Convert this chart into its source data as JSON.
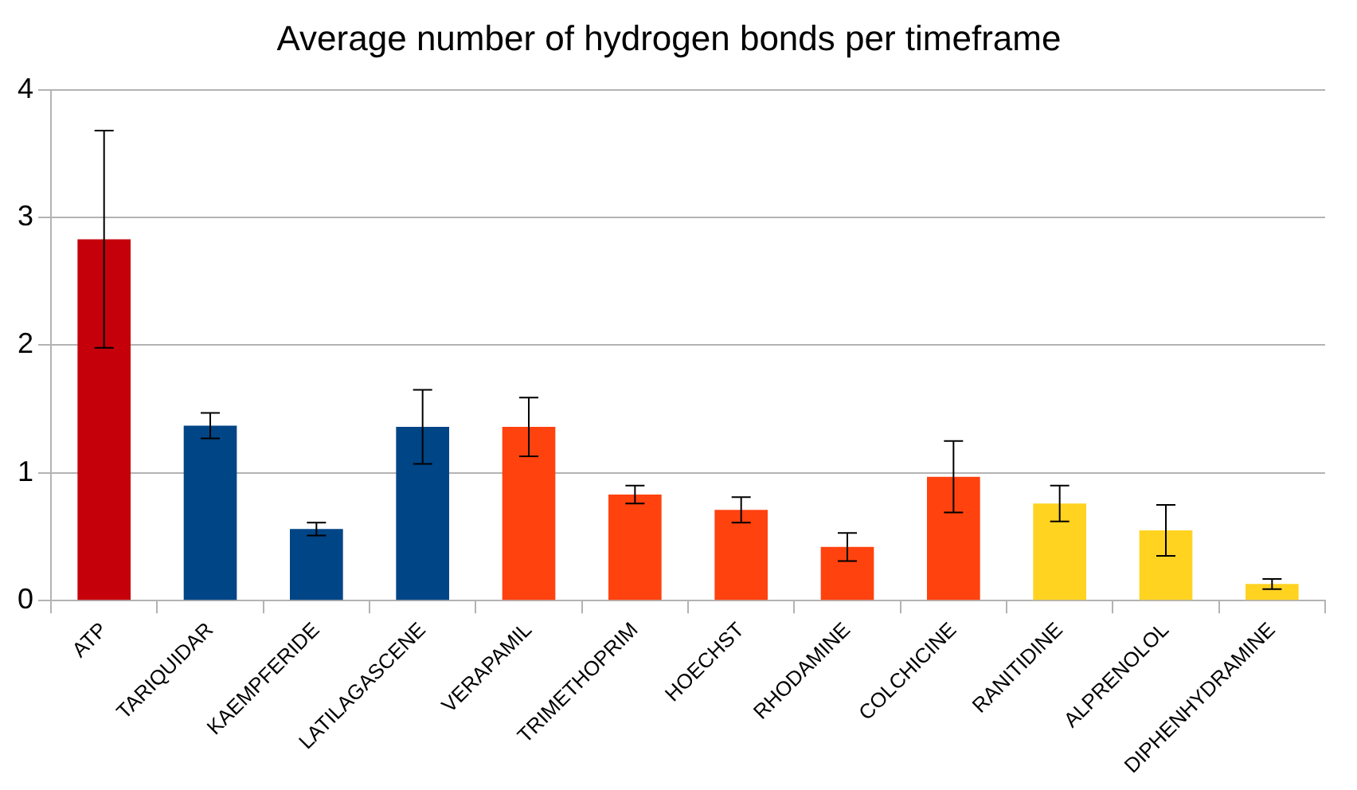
{
  "chart_data": {
    "type": "bar",
    "title": "Average number of hydrogen bonds per timeframe",
    "categories": [
      "ATP",
      "TARIQUIDAR",
      "KAEMPFERIDE",
      "LATILAGASCENE",
      "VERAPAMIL",
      "TRIMETHOPRIM",
      "HOECHST",
      "RHODAMINE",
      "COLCHICINE",
      "RANITIDINE",
      "ALPRENOLOL",
      "DIPHENHYDRAMINE"
    ],
    "values": [
      2.83,
      1.37,
      0.56,
      1.36,
      1.36,
      0.83,
      0.71,
      0.42,
      0.97,
      0.76,
      0.55,
      0.13
    ],
    "errors": [
      0.85,
      0.1,
      0.05,
      0.29,
      0.23,
      0.07,
      0.1,
      0.11,
      0.28,
      0.14,
      0.2,
      0.04
    ],
    "colors": [
      "#c5000b",
      "#004586",
      "#004586",
      "#004586",
      "#ff420e",
      "#ff420e",
      "#ff420e",
      "#ff420e",
      "#ff420e",
      "#ffd320",
      "#ffd320",
      "#ffd320"
    ],
    "ylim": [
      0,
      4
    ],
    "yticks": [
      0,
      1,
      2,
      3,
      4
    ],
    "grid": "y",
    "legend": false
  }
}
